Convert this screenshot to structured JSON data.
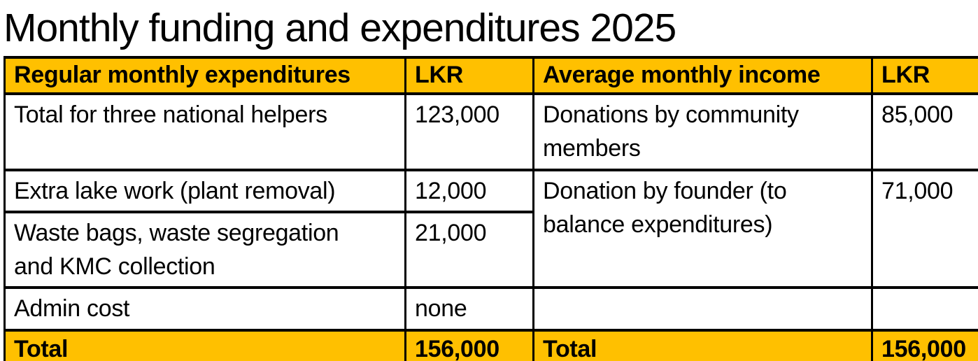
{
  "page": {
    "title": "Monthly funding and expenditures 2025"
  },
  "colors": {
    "accent_bg": "#FFC000",
    "border": "#000000",
    "text": "#000000",
    "page_bg": "#FFFFFF"
  },
  "table": {
    "columns": [
      {
        "label": "Regular monthly expenditures"
      },
      {
        "label": "LKR"
      },
      {
        "label": "Average monthly income"
      },
      {
        "label": "LKR"
      }
    ],
    "rows": [
      {
        "expense": "Total for three national helpers",
        "expense_lkr": "123,000",
        "income": "Donations by community\nmembers",
        "income_lkr": "85,000"
      },
      {
        "expense": "Extra lake work (plant removal)",
        "expense_lkr": "12,000",
        "income": "Donation by founder (to\nbalance expenditures)",
        "income_lkr": "71,000"
      },
      {
        "expense": "Waste bags, waste segregation\nand KMC collection",
        "expense_lkr": "21,000"
      },
      {
        "expense": "Admin cost",
        "expense_lkr": "none",
        "income": "",
        "income_lkr": ""
      }
    ],
    "total": {
      "expense_label": "Total",
      "expense_lkr": "156,000",
      "income_label": "Total",
      "income_lkr": "156,000"
    }
  }
}
